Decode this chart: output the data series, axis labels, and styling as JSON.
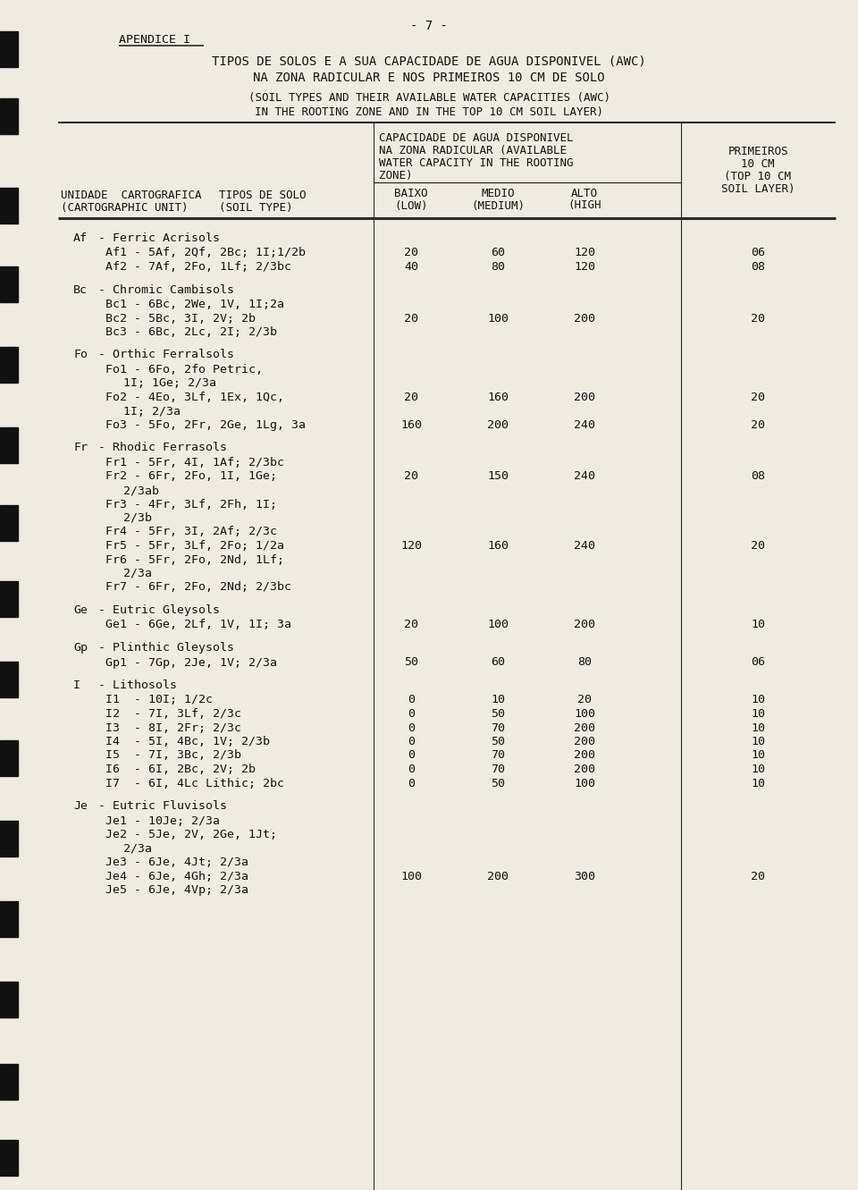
{
  "page_number": "- 7 -",
  "appendix_label": "APENDICE I",
  "title_pt1": "TIPOS DE SOLOS E A SUA CAPACIDADE DE AGUA DISPONIVEL (AWC)",
  "title_pt2": "NA ZONA RADICULAR E NOS PRIMEIROS 10 CM DE SOLO",
  "title_en1": "(SOIL TYPES AND THEIR AVAILABLE WATER CAPACITIES (AWC)",
  "title_en2": "IN THE ROOTING ZONE AND IN THE TOP 10 CM SOIL LAYER)",
  "header_cap1": "CAPACIDADE DE AGUA DISPONIVEL",
  "header_cap2": "NA ZONA RADICULAR (AVAILABLE",
  "header_cap3": "WATER CAPACITY IN THE ROOTING",
  "header_cap4": "ZONE)",
  "header_prim1": "PRIMEIROS",
  "header_prim2": "10 CM",
  "header_prim3": "(TOP 10 CM",
  "header_prim4": "SOIL LAYER)",
  "lbl_unit1": "UNIDADE  CARTOGRAFICA",
  "lbl_unit2": "(CARTOGRAPHIC UNIT)",
  "lbl_tipo1": "TIPOS DE SOLO",
  "lbl_tipo2": "(SOIL TYPE)",
  "lbl_baixo1": "BAIXO",
  "lbl_baixo2": "(LOW)",
  "lbl_medio1": "MEDIO",
  "lbl_medio2": "(MEDIUM)",
  "lbl_alto1": "ALTO",
  "lbl_alto2": "(HIGH",
  "bg": "#f0ebe0",
  "groups": [
    {
      "code": "Af",
      "name": "Ferric Acrisols",
      "entries": [
        {
          "lines": [
            "Af1 - 5Af, 2Qf, 2Bc; 1I;1/2b"
          ],
          "b": "20",
          "m": "60",
          "a": "120",
          "p": "06"
        },
        {
          "lines": [
            "Af2 - 7Af, 2Fo, 1Lf; 2/3bc"
          ],
          "b": "40",
          "m": "80",
          "a": "120",
          "p": "08"
        }
      ]
    },
    {
      "code": "Bc",
      "name": "Chromic Cambisols",
      "entries": [
        {
          "lines": [
            "Bc1 - 6Bc, 2We, 1V, 1I;2a"
          ],
          "b": "",
          "m": "",
          "a": "",
          "p": ""
        },
        {
          "lines": [
            "Bc2 - 5Bc, 3I, 2V; 2b"
          ],
          "b": "20",
          "m": "100",
          "a": "200",
          "p": "20"
        },
        {
          "lines": [
            "Bc3 - 6Bc, 2Lc, 2I; 2/3b"
          ],
          "b": "",
          "m": "",
          "a": "",
          "p": ""
        }
      ]
    },
    {
      "code": "Fo",
      "name": "Orthic Ferralsols",
      "entries": [
        {
          "lines": [
            "Fo1 - 6Fo, 2fo Petric,",
            "        1I; 1Ge; 2/3a"
          ],
          "b": "",
          "m": "",
          "a": "",
          "p": ""
        },
        {
          "lines": [
            "Fo2 - 4Eo, 3Lf, 1Ex, 1Qc,",
            "        1I; 2/3a"
          ],
          "b": "20",
          "m": "160",
          "a": "200",
          "p": "20"
        },
        {
          "lines": [
            "Fo3 - 5Fo, 2Fr, 2Ge, 1Lg, 3a"
          ],
          "b": "160",
          "m": "200",
          "a": "240",
          "p": "20"
        }
      ]
    },
    {
      "code": "Fr",
      "name": "Rhodic Ferrasols",
      "entries": [
        {
          "lines": [
            "Fr1 - 5Fr, 4I, 1Af; 2/3bc"
          ],
          "b": "",
          "m": "",
          "a": "",
          "p": ""
        },
        {
          "lines": [
            "Fr2 - 6Fr, 2Fo, 1I, 1Ge;",
            "        2/3ab"
          ],
          "b": "20",
          "m": "150",
          "a": "240",
          "p": "08"
        },
        {
          "lines": [
            "Fr3 - 4Fr, 3Lf, 2Fh, 1I;",
            "        2/3b"
          ],
          "b": "",
          "m": "",
          "a": "",
          "p": ""
        },
        {
          "lines": [
            "Fr4 - 5Fr, 3I, 2Af; 2/3c"
          ],
          "b": "",
          "m": "",
          "a": "",
          "p": ""
        },
        {
          "lines": [
            "Fr5 - 5Fr, 3Lf, 2Fo; 1/2a"
          ],
          "b": "120",
          "m": "160",
          "a": "240",
          "p": "20"
        },
        {
          "lines": [
            "Fr6 - 5Fr, 2Fo, 2Nd, 1Lf;",
            "        2/3a"
          ],
          "b": "",
          "m": "",
          "a": "",
          "p": ""
        },
        {
          "lines": [
            "Fr7 - 6Fr, 2Fo, 2Nd; 2/3bc"
          ],
          "b": "",
          "m": "",
          "a": "",
          "p": ""
        }
      ]
    },
    {
      "code": "Ge",
      "name": "Eutric Gleysols",
      "entries": [
        {
          "lines": [
            "Ge1 - 6Ge, 2Lf, 1V, 1I; 3a"
          ],
          "b": "20",
          "m": "100",
          "a": "200",
          "p": "10"
        }
      ]
    },
    {
      "code": "Gp",
      "name": "Plinthic Gleysols",
      "entries": [
        {
          "lines": [
            "Gp1 - 7Gp, 2Je, 1V; 2/3a"
          ],
          "b": "50",
          "m": "60",
          "a": "80",
          "p": "06"
        }
      ]
    },
    {
      "code": "I",
      "name": "Lithosols",
      "entries": [
        {
          "lines": [
            "I1  - 10I; 1/2c"
          ],
          "b": "0",
          "m": "10",
          "a": "20",
          "p": "10"
        },
        {
          "lines": [
            "I2  - 7I, 3Lf, 2/3c"
          ],
          "b": "0",
          "m": "50",
          "a": "100",
          "p": "10"
        },
        {
          "lines": [
            "I3  - 8I, 2Fr; 2/3c"
          ],
          "b": "0",
          "m": "70",
          "a": "200",
          "p": "10"
        },
        {
          "lines": [
            "I4  - 5I, 4Bc, 1V; 2/3b"
          ],
          "b": "0",
          "m": "50",
          "a": "200",
          "p": "10"
        },
        {
          "lines": [
            "I5  - 7I, 3Bc, 2/3b"
          ],
          "b": "0",
          "m": "70",
          "a": "200",
          "p": "10"
        },
        {
          "lines": [
            "I6  - 6I, 2Bc, 2V; 2b"
          ],
          "b": "0",
          "m": "70",
          "a": "200",
          "p": "10"
        },
        {
          "lines": [
            "I7  - 6I, 4Lc Lithic; 2bc"
          ],
          "b": "0",
          "m": "50",
          "a": "100",
          "p": "10"
        }
      ]
    },
    {
      "code": "Je",
      "name": "Eutric Fluvisols",
      "entries": [
        {
          "lines": [
            "Je1 - 10Je; 2/3a"
          ],
          "b": "",
          "m": "",
          "a": "",
          "p": ""
        },
        {
          "lines": [
            "Je2 - 5Je, 2V, 2Ge, 1Jt;",
            "        2/3a"
          ],
          "b": "",
          "m": "",
          "a": "",
          "p": ""
        },
        {
          "lines": [
            "Je3 - 6Je, 4Jt; 2/3a"
          ],
          "b": "",
          "m": "",
          "a": "",
          "p": ""
        },
        {
          "lines": [
            "Je4 - 6Je, 4Gh; 2/3a"
          ],
          "b": "100",
          "m": "200",
          "a": "300",
          "p": "20"
        },
        {
          "lines": [
            "Je5 - 6Je, 4Vp; 2/3a"
          ],
          "b": "",
          "m": "",
          "a": "",
          "p": ""
        }
      ]
    }
  ]
}
